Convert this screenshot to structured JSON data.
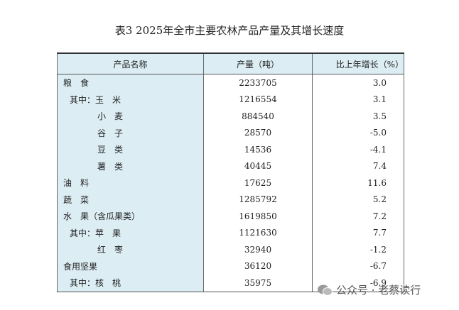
{
  "header": {
    "title": "表3  2025年全市主要农林产品产量及其增长速度"
  },
  "table": {
    "columns": [
      "产品名称",
      "产量（吨）",
      "比上年增长（%）"
    ],
    "rows": [
      [
        "粮　食",
        "2233705",
        "3.0"
      ],
      [
        "其中：玉　米",
        "1216554",
        "3.1"
      ],
      [
        "小　麦",
        "884540",
        "3.5"
      ],
      [
        "谷　子",
        "28570",
        "-5.0"
      ],
      [
        "豆　类",
        "14536",
        "-4.1"
      ],
      [
        "薯　类",
        "40445",
        "7.4"
      ],
      [
        "油　料",
        "17625",
        "11.6"
      ],
      [
        "蔬　菜",
        "1285792",
        "5.2"
      ],
      [
        "水　果（含瓜果类）",
        "1619850",
        "7.2"
      ],
      [
        "其中：苹　果",
        "1121630",
        "7.7"
      ],
      [
        "红　枣",
        "32940",
        "-1.2"
      ],
      [
        "食用坚果",
        "36120",
        "-6.7"
      ],
      [
        "其中：核　桃",
        "35975",
        "-6.9"
      ]
    ]
  },
  "watermark": "公众号 · 老蔡读行"
}
